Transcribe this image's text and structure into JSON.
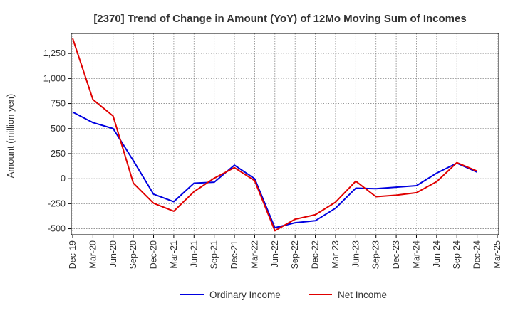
{
  "chart_data": {
    "type": "line",
    "title": "[2370]  Trend of Change in Amount (YoY) of 12Mo Moving Sum of Incomes",
    "ylabel": "Amount (million yen)",
    "xlabel": "",
    "x": [
      "Dec-19",
      "Mar-20",
      "Jun-20",
      "Sep-20",
      "Dec-20",
      "Mar-21",
      "Jun-21",
      "Sep-21",
      "Dec-21",
      "Mar-22",
      "Jun-22",
      "Sep-22",
      "Dec-22",
      "Mar-23",
      "Jun-23",
      "Sep-23",
      "Dec-23",
      "Mar-24",
      "Jun-24",
      "Sep-24",
      "Dec-24",
      "Mar-25"
    ],
    "ylim": [
      -560,
      1450
    ],
    "yticks": [
      -500,
      -250,
      0,
      250,
      500,
      750,
      1000,
      1250
    ],
    "ytick_labels": [
      "-500",
      "-250",
      "0",
      "250",
      "500",
      "750",
      "1,000",
      "1,250"
    ],
    "grid": true,
    "legend_position": "bottom-center",
    "series": [
      {
        "name": "Ordinary Income",
        "color": "#0000e0",
        "values": [
          665,
          560,
          500,
          180,
          -155,
          -230,
          -45,
          -35,
          135,
          0,
          -490,
          -440,
          -420,
          -295,
          -95,
          -100,
          -85,
          -70,
          55,
          155,
          65,
          null
        ]
      },
      {
        "name": "Net Income",
        "color": "#e00000",
        "values": [
          1400,
          790,
          625,
          -45,
          -245,
          -325,
          -130,
          5,
          110,
          -20,
          -520,
          -405,
          -360,
          -235,
          -25,
          -180,
          -165,
          -140,
          -30,
          160,
          75,
          null
        ]
      }
    ]
  }
}
